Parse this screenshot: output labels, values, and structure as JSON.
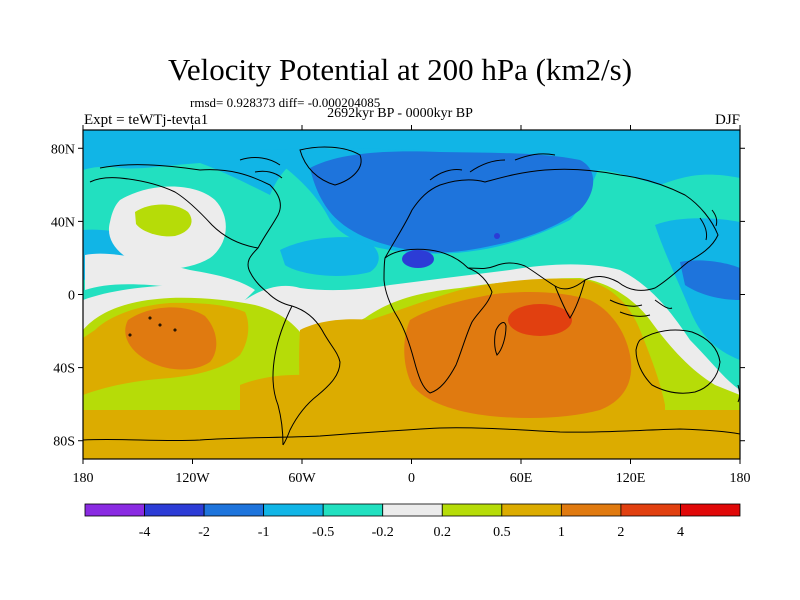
{
  "title": "Velocity Potential at 200 hPa (km2/s)",
  "stats_line": "rmsd= 0.928373 diff= -0.000204085",
  "period": "2692kyr BP - 0000kyr BP",
  "experiment": "Expt = teWTj-tevta1",
  "season": "DJF",
  "map": {
    "lon_range": [
      -180,
      180
    ],
    "lat_range": [
      -90,
      90
    ],
    "lat_ticks": [
      {
        "value": 80,
        "label": "80N"
      },
      {
        "value": 40,
        "label": "40N"
      },
      {
        "value": 0,
        "label": "0"
      },
      {
        "value": -40,
        "label": "40S"
      },
      {
        "value": -80,
        "label": "80S"
      }
    ],
    "lon_ticks": [
      {
        "value": -180,
        "label": "180"
      },
      {
        "value": -120,
        "label": "120W"
      },
      {
        "value": -60,
        "label": "60W"
      },
      {
        "value": 0,
        "label": "0"
      },
      {
        "value": 60,
        "label": "60E"
      },
      {
        "value": 120,
        "label": "120E"
      },
      {
        "value": 180,
        "label": "180"
      }
    ]
  },
  "colorbar": {
    "boxes": [
      "#8a2be2",
      "#2c3cd6",
      "#1e74dc",
      "#11b5e6",
      "#22e0c0",
      "#ececec",
      "#b6dc08",
      "#dcac00",
      "#e07a10",
      "#e14010",
      "#e00808"
    ],
    "labels": [
      "-4",
      "-2",
      "-1",
      "-0.5",
      "-0.2",
      "0.2",
      "0.5",
      "1",
      "2",
      "4"
    ]
  },
  "colors": {
    "level_neg05_neg02": "#22e0c0",
    "level_neg1_neg05": "#11b5e6",
    "level_neg2_neg1": "#1e74dc",
    "level_neg4_neg2": "#2c3cd6",
    "level_neg02_02": "#ececec",
    "level_02_05": "#b6dc08",
    "level_05_1": "#dcac00",
    "level_1_2": "#e07a10",
    "level_2_4": "#e14010"
  }
}
